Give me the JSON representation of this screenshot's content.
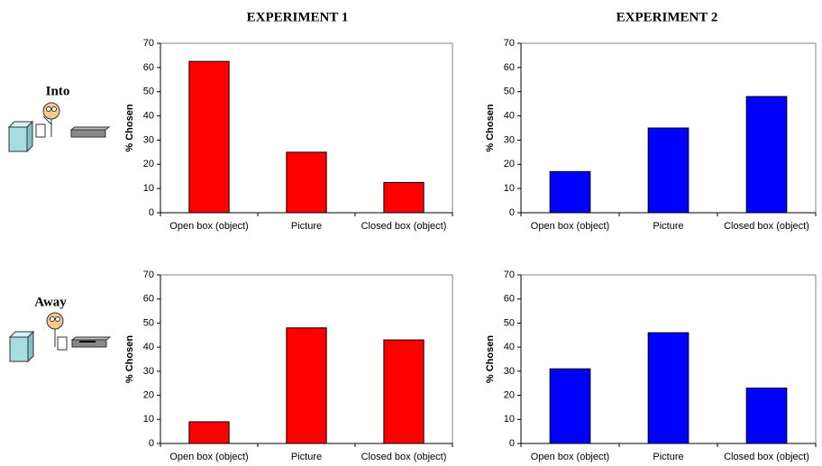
{
  "columns": [
    "EXPERIMENT 1",
    "EXPERIMENT 2"
  ],
  "rows": [
    "Into",
    "Away"
  ],
  "chart_data": [
    {
      "type": "bar",
      "ylabel": "% Chosen",
      "categories": [
        "Open box (object)",
        "Picture",
        "Closed box (object)"
      ],
      "values": [
        62.5,
        25,
        12.5
      ],
      "color": "#ff0000",
      "ylim": [
        0,
        70
      ],
      "yticks": [
        0,
        10,
        20,
        30,
        40,
        50,
        60,
        70
      ]
    },
    {
      "type": "bar",
      "ylabel": "% Chosen",
      "categories": [
        "Open box (object)",
        "Picture",
        "Closed box (object)"
      ],
      "values": [
        17,
        35,
        48
      ],
      "color": "#0000ff",
      "ylim": [
        0,
        70
      ],
      "yticks": [
        0,
        10,
        20,
        30,
        40,
        50,
        60,
        70
      ]
    },
    {
      "type": "bar",
      "ylabel": "% Chosen",
      "categories": [
        "Open box (object)",
        "Picture",
        "Closed box (object)"
      ],
      "values": [
        9,
        48,
        43
      ],
      "color": "#ff0000",
      "ylim": [
        0,
        70
      ],
      "yticks": [
        0,
        10,
        20,
        30,
        40,
        50,
        60,
        70
      ]
    },
    {
      "type": "bar",
      "ylabel": "% Chosen",
      "categories": [
        "Open box (object)",
        "Picture",
        "Closed box (object)"
      ],
      "values": [
        31,
        46,
        23
      ],
      "color": "#0000ff",
      "ylim": [
        0,
        70
      ],
      "yticks": [
        0,
        10,
        20,
        30,
        40,
        50,
        60,
        70
      ]
    }
  ]
}
